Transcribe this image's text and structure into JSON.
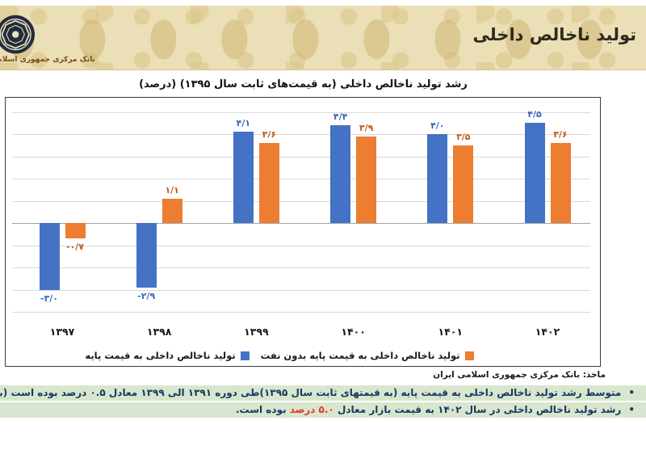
{
  "header": {
    "title": "تولید ناخالص داخلی",
    "bank_name": "بانک مرکزی جمهوری اسلامی ایران"
  },
  "chart": {
    "title": "رشد تولید ناخالص داخلی (به قیمت‌های ثابت سال ۱۳۹۵) (درصد)",
    "source": "ماخذ: بانک مرکزی جمهوری اسلامی ایران",
    "legend": [
      {
        "label": "تولید ناخالص داخلی به قیمت پایه",
        "color": "#4472C4"
      },
      {
        "label": "تولید ناخالص داخلی به قیمت پایه بدون نفت",
        "color": "#ED7D31"
      }
    ]
  },
  "chart_data": {
    "type": "bar",
    "categories": [
      "۱۳۹۷",
      "۱۳۹۸",
      "۱۳۹۹",
      "۱۴۰۰",
      "۱۴۰۱",
      "۱۴۰۲"
    ],
    "categories_western": [
      1397,
      1398,
      1399,
      1400,
      1401,
      1402
    ],
    "series": [
      {
        "name": "تولید ناخالص داخلی به قیمت پایه",
        "color": "#4472C4",
        "values": [
          -3.0,
          -2.9,
          4.1,
          4.4,
          4.0,
          4.5
        ],
        "labels": [
          "-۳/۰",
          "-۲/۹",
          "۴/۱",
          "۴/۴",
          "۴/۰",
          "۴/۵"
        ]
      },
      {
        "name": "تولید ناخالص داخلی به قیمت پایه بدون نفت",
        "color": "#ED7D31",
        "values": [
          -0.7,
          1.1,
          3.6,
          3.9,
          3.5,
          3.6
        ],
        "labels": [
          "-۰/۷",
          "۱/۱",
          "۳/۶",
          "۳/۹",
          "۳/۵",
          "۳/۶"
        ]
      }
    ],
    "ylim": [
      -4,
      5
    ],
    "grid": true,
    "legend_position": "bottom",
    "unit": "درصد"
  },
  "notes": {
    "bullet": "•",
    "items": [
      {
        "parts": [
          {
            "text": "متوسط رشد تولید ناخالص داخلی یه قیمت پایه (به قیمتهای ثابت سال ۱۳۹۵)طی دوره ۱۳۹۱ الی ۱۳۹۹ معادل ۰.۵ درصد بوده است (بر اساس آمارهای ب",
            "red": false
          }
        ]
      },
      {
        "parts": [
          {
            "text": "رشد تولید ناخالص داخلی در سال ۱۴۰۲ به قیمت بازار معادل ",
            "red": false
          },
          {
            "text": "۵.۰ درصد",
            "red": true
          },
          {
            "text": " بوده است.",
            "red": false
          }
        ]
      }
    ]
  },
  "colors": {
    "blue_bar": "#4472C4",
    "orange_bar": "#ED7D31",
    "blue_label": "#3A68B8",
    "orange_label": "#C05A15",
    "notes_bg": "#D9E6CF",
    "notes_text": "#17375E",
    "red_text": "#E2392B",
    "header_bg": "#EADFB6"
  }
}
